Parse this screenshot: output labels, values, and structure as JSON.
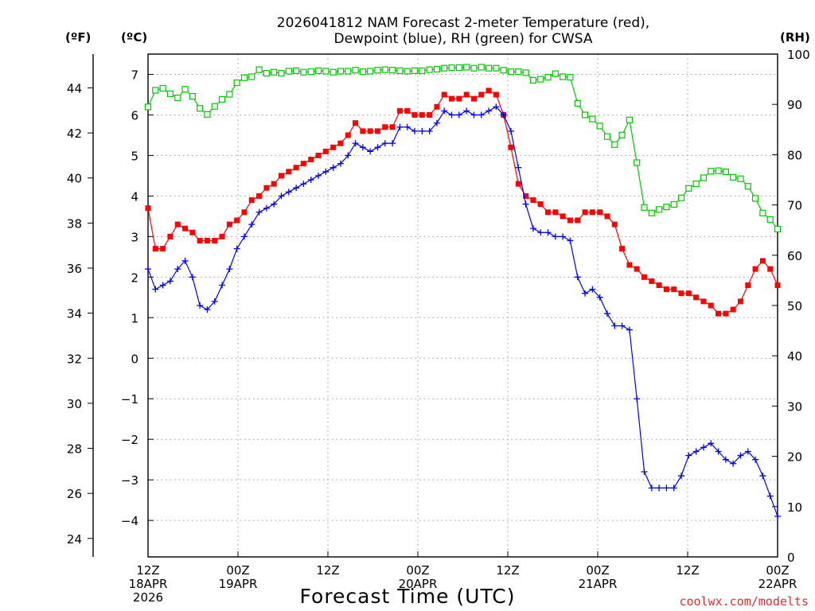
{
  "chart_data": {
    "type": "line",
    "title": "2026041812 NAM Forecast 2-meter Temperature (red),",
    "title_line2": "Dewpoint (blue), RH (green) for CWSA",
    "xlabel": "Forecast Time (UTC)",
    "credit": "coolwx.com/modelts",
    "unit_f": "(ºF)",
    "unit_c": "(ºC)",
    "unit_rh": "(RH)",
    "x_range_hours": [
      0,
      84
    ],
    "celsius_range": [
      -4.9,
      7.5
    ],
    "rh_range": [
      0,
      100
    ],
    "celsius_ticks": [
      -4,
      -3,
      -2,
      -1,
      0,
      1,
      2,
      3,
      4,
      5,
      6,
      7
    ],
    "fahrenheit_ticks": [
      24,
      26,
      28,
      30,
      32,
      34,
      36,
      38,
      40,
      42,
      44
    ],
    "rh_ticks": [
      0,
      10,
      20,
      30,
      40,
      50,
      60,
      70,
      80,
      90,
      100
    ],
    "x_ticks": [
      {
        "hour": 0,
        "line1": "12Z",
        "line2": "18APR",
        "line3": "2026"
      },
      {
        "hour": 12,
        "line1": "00Z",
        "line2": "19APR",
        "line3": ""
      },
      {
        "hour": 24,
        "line1": "12Z",
        "line2": "",
        "line3": ""
      },
      {
        "hour": 36,
        "line1": "00Z",
        "line2": "20APR",
        "line3": ""
      },
      {
        "hour": 48,
        "line1": "12Z",
        "line2": "",
        "line3": ""
      },
      {
        "hour": 60,
        "line1": "00Z",
        "line2": "21APR",
        "line3": ""
      },
      {
        "hour": 72,
        "line1": "12Z",
        "line2": "",
        "line3": ""
      },
      {
        "hour": 84,
        "line1": "00Z",
        "line2": "22APR",
        "line3": ""
      }
    ],
    "series": [
      {
        "name": "2-meter Temperature",
        "color": "#ff0000",
        "marker": "square-filled",
        "axis": "celsius",
        "values": [
          3.7,
          2.7,
          2.7,
          3.0,
          3.3,
          3.2,
          3.1,
          2.9,
          2.9,
          2.9,
          3.0,
          3.3,
          3.4,
          3.6,
          3.9,
          4.0,
          4.2,
          4.3,
          4.5,
          4.6,
          4.7,
          4.8,
          4.9,
          5.0,
          5.1,
          5.2,
          5.3,
          5.5,
          5.8,
          5.6,
          5.6,
          5.6,
          5.7,
          5.7,
          6.1,
          6.1,
          6.0,
          6.0,
          6.0,
          6.2,
          6.5,
          6.4,
          6.4,
          6.5,
          6.4,
          6.5,
          6.6,
          6.5,
          6.0,
          5.2,
          4.3,
          4.0,
          3.9,
          3.8,
          3.6,
          3.6,
          3.5,
          3.4,
          3.4,
          3.6,
          3.6,
          3.6,
          3.5,
          3.3,
          2.7,
          2.3,
          2.2,
          2.0,
          1.9,
          1.8,
          1.7,
          1.7,
          1.6,
          1.6,
          1.5,
          1.4,
          1.3,
          1.1,
          1.1,
          1.2,
          1.4,
          1.8,
          2.2,
          2.4,
          2.2,
          1.8
        ]
      },
      {
        "name": "Dewpoint",
        "color": "#0000ff",
        "marker": "plus",
        "axis": "celsius",
        "values": [
          2.2,
          1.7,
          1.8,
          1.9,
          2.2,
          2.4,
          2.0,
          1.3,
          1.2,
          1.4,
          1.8,
          2.2,
          2.7,
          3.0,
          3.3,
          3.6,
          3.7,
          3.8,
          4.0,
          4.1,
          4.2,
          4.3,
          4.4,
          4.5,
          4.6,
          4.7,
          4.8,
          5.0,
          5.3,
          5.2,
          5.1,
          5.2,
          5.3,
          5.3,
          5.7,
          5.7,
          5.6,
          5.6,
          5.6,
          5.8,
          6.1,
          6.0,
          6.0,
          6.1,
          6.0,
          6.0,
          6.1,
          6.2,
          6.0,
          5.6,
          4.7,
          3.8,
          3.2,
          3.1,
          3.1,
          3.0,
          3.0,
          2.9,
          2.0,
          1.6,
          1.7,
          1.5,
          1.1,
          0.8,
          0.8,
          0.7,
          -1.0,
          -2.8,
          -3.2,
          -3.2,
          -3.2,
          -3.2,
          -2.9,
          -2.4,
          -2.3,
          -2.2,
          -2.1,
          -2.3,
          -2.5,
          -2.6,
          -2.4,
          -2.3,
          -2.5,
          -2.9,
          -3.4,
          -3.9
        ]
      },
      {
        "name": "RH",
        "color": "#00c800",
        "marker": "square-open",
        "axis": "rh",
        "values": [
          89.5,
          92.8,
          93.2,
          92.1,
          91.3,
          93.0,
          91.6,
          89.2,
          88.0,
          89.6,
          91.0,
          92.0,
          94.3,
          95.3,
          95.5,
          96.9,
          96.2,
          96.4,
          96.2,
          96.6,
          96.7,
          96.4,
          96.5,
          96.7,
          96.6,
          96.4,
          96.6,
          96.6,
          96.8,
          96.5,
          96.6,
          96.8,
          96.9,
          96.8,
          96.7,
          96.6,
          96.7,
          96.7,
          96.9,
          97.0,
          97.2,
          97.3,
          97.3,
          97.4,
          97.2,
          97.4,
          97.2,
          97.2,
          96.8,
          96.5,
          96.5,
          96.3,
          94.8,
          95.0,
          95.4,
          96.1,
          95.5,
          95.4,
          90.2,
          87.9,
          87.1,
          85.7,
          83.6,
          82.0,
          83.9,
          86.9,
          78.4,
          69.5,
          68.4,
          69.1,
          69.6,
          70.1,
          71.4,
          73.3,
          74.2,
          75.4,
          76.7,
          76.8,
          76.6,
          75.5,
          75.2,
          73.7,
          71.3,
          68.4,
          67.1,
          65.2
        ]
      }
    ]
  }
}
